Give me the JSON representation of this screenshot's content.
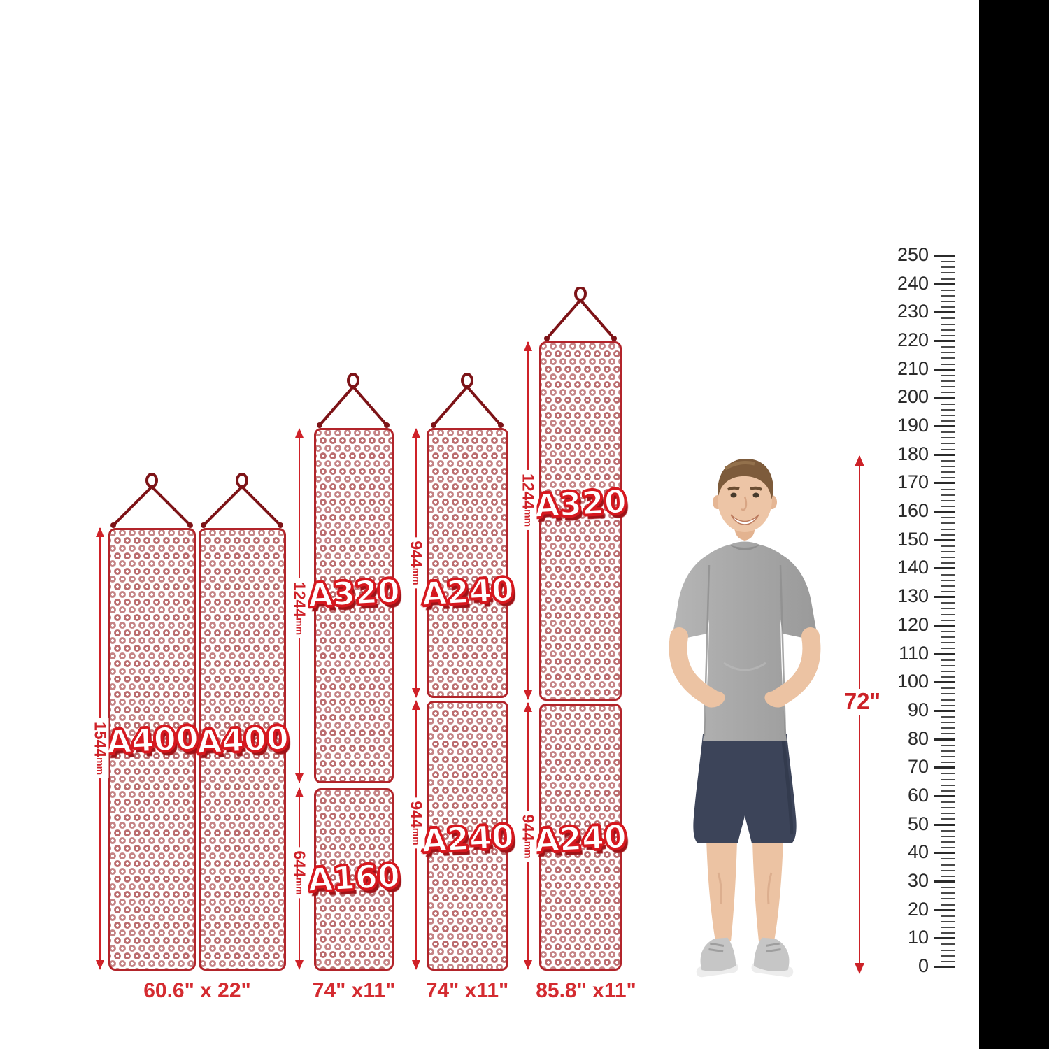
{
  "accent_colors": {
    "dimension_red": "#cf2128",
    "panel_border_red": "#b2242a",
    "led_dot_red": "#bb6d6f",
    "model_label_stroke_red": "#d6181f",
    "size_caption_red": "#d42b30",
    "hook_dark_red": "#7d1317",
    "ruler_ink": "#2b2b2b"
  },
  "groups": [
    {
      "size_label": "60.6\" x 22\"",
      "panels": [
        {
          "label": "A400"
        },
        {
          "label": "A400"
        }
      ],
      "dims": [
        {
          "value": "1544",
          "unit": "mm"
        }
      ]
    },
    {
      "size_label": "74\" x11\"",
      "panels": [
        {
          "label": "A320"
        },
        {
          "label": "A160"
        }
      ],
      "dims": [
        {
          "value": "1244",
          "unit": "mm"
        },
        {
          "value": "644",
          "unit": "mm"
        }
      ]
    },
    {
      "size_label": "74\" x11\"",
      "panels": [
        {
          "label": "A240"
        },
        {
          "label": "A240"
        }
      ],
      "dims": [
        {
          "value": "944",
          "unit": "mm"
        },
        {
          "value": "944",
          "unit": "mm"
        }
      ]
    },
    {
      "size_label": "85.8\" x11\"",
      "panels": [
        {
          "label": "A320"
        },
        {
          "label": "A240"
        }
      ],
      "dims": [
        {
          "value": "1244",
          "unit": "mm"
        },
        {
          "value": "944",
          "unit": "mm"
        }
      ]
    }
  ],
  "person": {
    "height_label": "72\""
  },
  "ruler": {
    "min": 0,
    "max": 250,
    "label_step": 10,
    "minor_tick_step": 2,
    "labels": [
      "250",
      "240",
      "230",
      "220",
      "210",
      "200",
      "190",
      "180",
      "170",
      "160",
      "150",
      "140",
      "130",
      "120",
      "110",
      "100",
      "90",
      "80",
      "70",
      "60",
      "50",
      "40",
      "30",
      "20",
      "10",
      "0"
    ]
  }
}
